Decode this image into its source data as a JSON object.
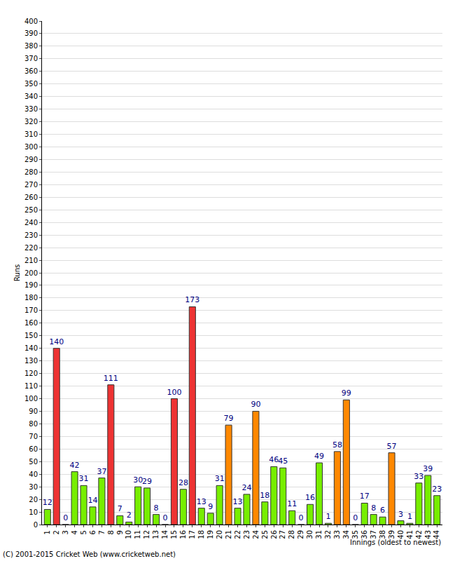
{
  "chart_data": {
    "type": "bar",
    "ylabel": "Runs",
    "xlabel": "Innings (oldest to newest)",
    "annotations": [
      "(C) 2001-2015 Cricket Web (www.cricketweb.net)"
    ],
    "categories": [
      "1",
      "2",
      "3",
      "4",
      "5",
      "6",
      "7",
      "8",
      "9",
      "10",
      "11",
      "12",
      "13",
      "14",
      "15",
      "16",
      "17",
      "18",
      "19",
      "20",
      "21",
      "22",
      "23",
      "24",
      "25",
      "26",
      "27",
      "28",
      "29",
      "30",
      "31",
      "32",
      "33",
      "34",
      "35",
      "36",
      "37",
      "38",
      "39",
      "40",
      "41",
      "42",
      "43",
      "44"
    ],
    "values": [
      12,
      140,
      0,
      42,
      31,
      14,
      37,
      111,
      7,
      2,
      30,
      29,
      8,
      0,
      100,
      28,
      173,
      13,
      9,
      31,
      79,
      13,
      24,
      90,
      18,
      46,
      45,
      11,
      0,
      16,
      49,
      1,
      58,
      99,
      0,
      17,
      8,
      6,
      57,
      3,
      1,
      33,
      39,
      23
    ],
    "colors": [
      "#77ee00",
      "#ee3333",
      "#77ee00",
      "#77ee00",
      "#77ee00",
      "#77ee00",
      "#77ee00",
      "#ee3333",
      "#77ee00",
      "#77ee00",
      "#77ee00",
      "#77ee00",
      "#77ee00",
      "#77ee00",
      "#ee3333",
      "#77ee00",
      "#ee3333",
      "#77ee00",
      "#77ee00",
      "#77ee00",
      "#ff8800",
      "#77ee00",
      "#77ee00",
      "#ff8800",
      "#77ee00",
      "#77ee00",
      "#77ee00",
      "#77ee00",
      "#77ee00",
      "#77ee00",
      "#77ee00",
      "#77ee00",
      "#ff8800",
      "#ff8800",
      "#77ee00",
      "#77ee00",
      "#77ee00",
      "#77ee00",
      "#ff8800",
      "#77ee00",
      "#77ee00",
      "#77ee00",
      "#77ee00",
      "#77ee00"
    ],
    "ylim": [
      0,
      400
    ],
    "yticks": [
      0,
      10,
      20,
      30,
      40,
      50,
      60,
      70,
      80,
      90,
      100,
      110,
      120,
      130,
      140,
      150,
      160,
      170,
      180,
      190,
      200,
      210,
      220,
      230,
      240,
      250,
      260,
      270,
      280,
      290,
      300,
      310,
      320,
      330,
      340,
      350,
      360,
      370,
      380,
      390,
      400
    ],
    "grid": true,
    "data_labels": true
  }
}
